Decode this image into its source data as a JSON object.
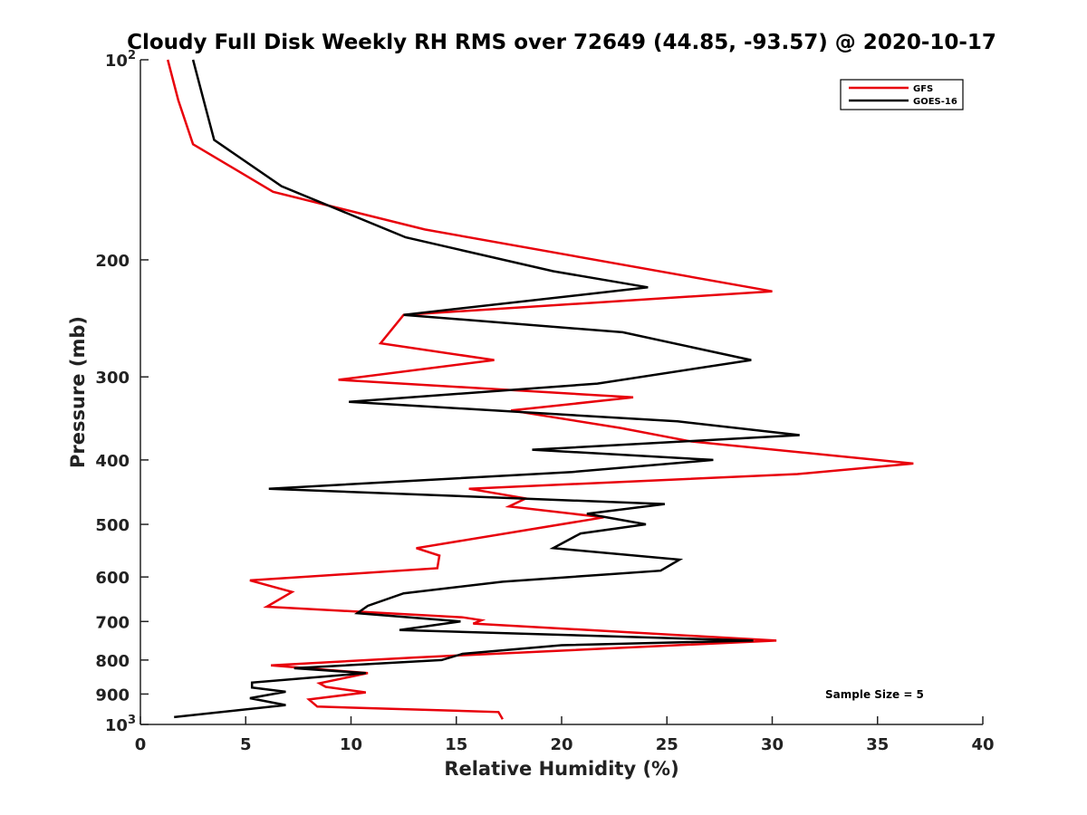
{
  "chart_data": {
    "type": "line",
    "title": "Cloudy Full Disk Weekly RH RMS over 72649 (44.85, -93.57) @ 2020-10-17",
    "xlabel": "Relative Humidity (%)",
    "ylabel": "Pressure (mb)",
    "xlim": [
      0,
      40
    ],
    "ylim": [
      100,
      1000
    ],
    "y_scale": "log",
    "y_reversed": true,
    "grid": false,
    "legend_position": "top-right",
    "x_ticks": [
      "0",
      "5",
      "10",
      "15",
      "20",
      "25",
      "30",
      "35",
      "40"
    ],
    "y_ticks": [
      {
        "value": 100,
        "label": "10",
        "sup": "2"
      },
      {
        "value": 200,
        "label": "200",
        "sup": ""
      },
      {
        "value": 300,
        "label": "300",
        "sup": ""
      },
      {
        "value": 400,
        "label": "400",
        "sup": ""
      },
      {
        "value": 500,
        "label": "500",
        "sup": ""
      },
      {
        "value": 600,
        "label": "600",
        "sup": ""
      },
      {
        "value": 700,
        "label": "700",
        "sup": ""
      },
      {
        "value": 800,
        "label": "800",
        "sup": ""
      },
      {
        "value": 900,
        "label": "900",
        "sup": ""
      },
      {
        "value": 1000,
        "label": "10",
        "sup": "3"
      }
    ],
    "series": [
      {
        "name": "GFS",
        "color": "#e8000b",
        "points": [
          [
            1.3,
            100
          ],
          [
            1.8,
            115
          ],
          [
            2.5,
            134
          ],
          [
            6.3,
            158
          ],
          [
            13.5,
            180
          ],
          [
            30.0,
            223
          ],
          [
            12.5,
            242
          ],
          [
            11.4,
            267
          ],
          [
            16.8,
            283
          ],
          [
            9.4,
            303
          ],
          [
            23.4,
            322
          ],
          [
            17.6,
            337
          ],
          [
            22.8,
            358
          ],
          [
            26.1,
            375
          ],
          [
            36.7,
            405
          ],
          [
            31.2,
            420
          ],
          [
            15.6,
            442
          ],
          [
            18.3,
            457
          ],
          [
            17.5,
            470
          ],
          [
            22.0,
            488
          ],
          [
            13.1,
            543
          ],
          [
            14.2,
            557
          ],
          [
            14.1,
            582
          ],
          [
            5.2,
            607
          ],
          [
            7.2,
            632
          ],
          [
            6.0,
            665
          ],
          [
            15.3,
            690
          ],
          [
            16.2,
            697
          ],
          [
            15.8,
            705
          ],
          [
            30.2,
            748
          ],
          [
            13.0,
            793
          ],
          [
            6.2,
            815
          ],
          [
            10.8,
            837
          ],
          [
            8.5,
            867
          ],
          [
            8.8,
            878
          ],
          [
            10.7,
            895
          ],
          [
            8.0,
            917
          ],
          [
            8.4,
            940
          ],
          [
            17.0,
            958
          ],
          [
            17.2,
            982
          ]
        ]
      },
      {
        "name": "GOES-16",
        "color": "#000000",
        "points": [
          [
            2.5,
            100
          ],
          [
            3.0,
            115
          ],
          [
            3.5,
            132
          ],
          [
            6.7,
            155
          ],
          [
            12.6,
            185
          ],
          [
            19.6,
            208
          ],
          [
            24.1,
            220
          ],
          [
            12.5,
            242
          ],
          [
            22.9,
            257
          ],
          [
            29.0,
            283
          ],
          [
            21.7,
            307
          ],
          [
            9.9,
            327
          ],
          [
            25.5,
            350
          ],
          [
            31.3,
            367
          ],
          [
            18.6,
            386
          ],
          [
            27.2,
            400
          ],
          [
            20.5,
            417
          ],
          [
            6.1,
            442
          ],
          [
            24.9,
            466
          ],
          [
            21.2,
            482
          ],
          [
            24.0,
            500
          ],
          [
            20.9,
            516
          ],
          [
            19.6,
            543
          ],
          [
            25.6,
            565
          ],
          [
            24.7,
            587
          ],
          [
            17.2,
            610
          ],
          [
            12.5,
            635
          ],
          [
            10.8,
            663
          ],
          [
            10.3,
            680
          ],
          [
            15.2,
            700
          ],
          [
            12.3,
            721
          ],
          [
            29.1,
            748
          ],
          [
            20.0,
            760
          ],
          [
            15.3,
            783
          ],
          [
            14.3,
            800
          ],
          [
            7.3,
            823
          ],
          [
            10.7,
            837
          ],
          [
            5.3,
            865
          ],
          [
            5.3,
            880
          ],
          [
            6.9,
            893
          ],
          [
            5.2,
            913
          ],
          [
            6.9,
            935
          ],
          [
            1.6,
            975
          ]
        ]
      }
    ],
    "annotations": [
      "Sample Size = 5"
    ]
  }
}
